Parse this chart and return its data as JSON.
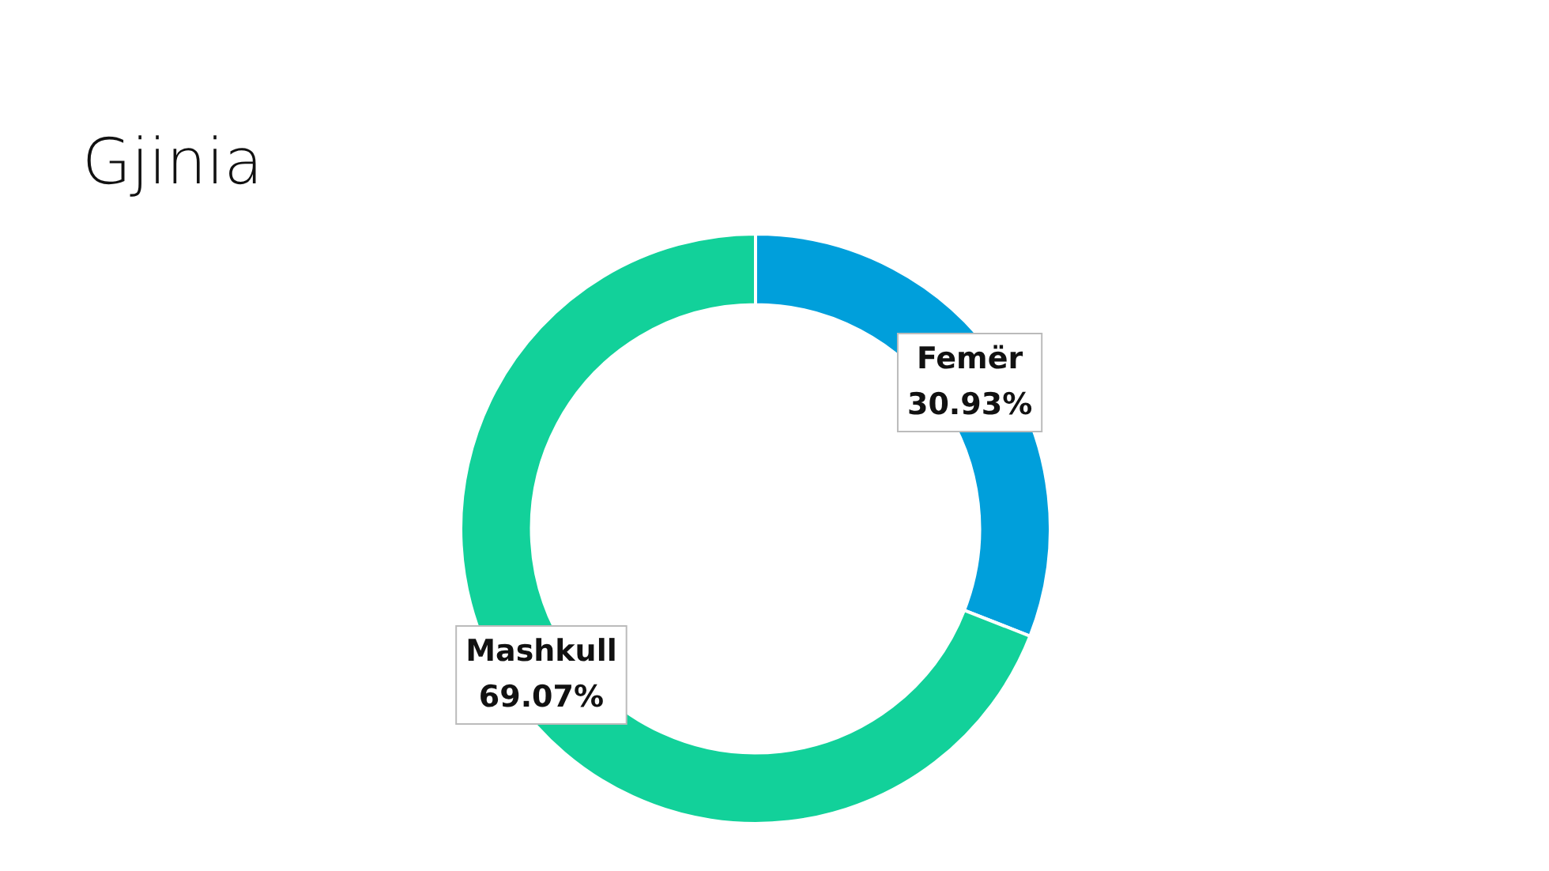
{
  "chart_data": {
    "type": "donut",
    "title": "Gjinia",
    "categories": [
      "Femër",
      "Mashkull"
    ],
    "values": [
      30.93,
      69.07
    ],
    "colors": [
      "#009fdb",
      "#12d19a"
    ],
    "value_labels": [
      "30.93%",
      "69.07%"
    ],
    "legend": false
  }
}
